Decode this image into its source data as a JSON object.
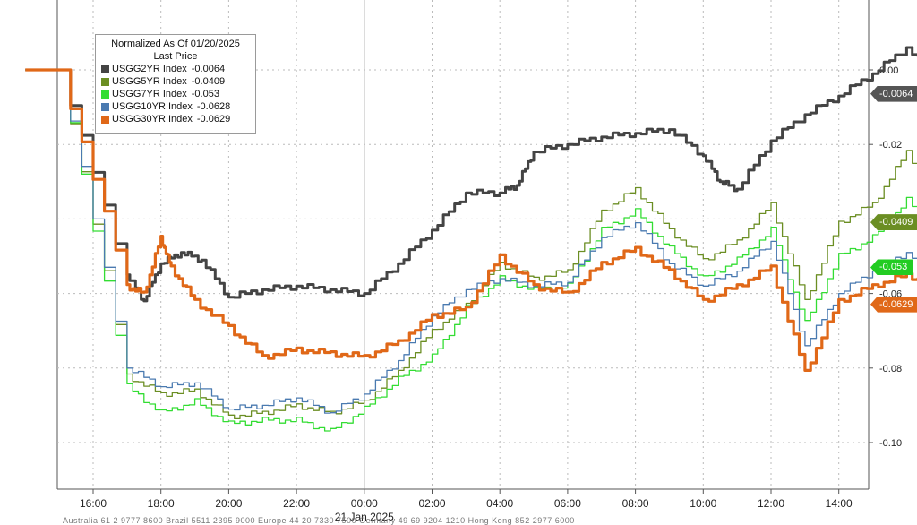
{
  "chart_data": {
    "type": "line",
    "legend": {
      "title_line1": "Normalized As Of 01/20/2025",
      "title_line2": "Last Price",
      "position": "top-left"
    },
    "x_ticks": [
      "16:00",
      "18:00",
      "20:00",
      "22:00",
      "00:00",
      "02:00",
      "04:00",
      "06:00",
      "08:00",
      "10:00",
      "12:00",
      "14:00"
    ],
    "x_date_label": "21 Jan 2025",
    "y_ticks": [
      "0.00",
      "-0.02",
      "-0.04",
      "-0.06",
      "-0.08",
      "-0.10"
    ],
    "ylim": [
      -0.1125,
      0.014
    ],
    "grid": true,
    "series": [
      {
        "name": "USGG2YR Index",
        "last": "-0.0064",
        "last_value": -0.0064,
        "color": "#444444",
        "points": [
          [
            0,
            0
          ],
          [
            1,
            0
          ],
          [
            3,
            -0.055
          ],
          [
            3.5,
            -0.062
          ],
          [
            4,
            -0.052
          ],
          [
            4.6,
            -0.049
          ],
          [
            5.2,
            -0.051
          ],
          [
            6,
            -0.061
          ],
          [
            7,
            -0.059
          ],
          [
            8,
            -0.058
          ],
          [
            9,
            -0.059
          ],
          [
            10,
            -0.06
          ],
          [
            11,
            -0.052
          ],
          [
            12,
            -0.043
          ],
          [
            13,
            -0.033
          ],
          [
            14,
            -0.033
          ],
          [
            14.5,
            -0.031
          ],
          [
            15,
            -0.022
          ],
          [
            16,
            -0.02
          ],
          [
            17,
            -0.018
          ],
          [
            18,
            -0.017
          ],
          [
            19,
            -0.016
          ],
          [
            20,
            -0.023
          ],
          [
            20.5,
            -0.03
          ],
          [
            21,
            -0.032
          ],
          [
            22,
            -0.019
          ],
          [
            23,
            -0.012
          ],
          [
            24,
            -0.007
          ],
          [
            25,
            -0.001
          ],
          [
            26,
            0.006
          ],
          [
            27,
            -0.003
          ],
          [
            28,
            -0.005
          ],
          [
            28.5,
            -0.006
          ],
          [
            29,
            -0.0064
          ]
        ]
      },
      {
        "name": "USGG5YR Index",
        "last": "-0.0409",
        "last_value": -0.0409,
        "color": "#6b8e23",
        "points": [
          [
            0,
            0
          ],
          [
            1,
            0
          ],
          [
            3,
            -0.082
          ],
          [
            4,
            -0.087
          ],
          [
            5,
            -0.086
          ],
          [
            6,
            -0.093
          ],
          [
            7,
            -0.092
          ],
          [
            8,
            -0.09
          ],
          [
            9,
            -0.092
          ],
          [
            10,
            -0.089
          ],
          [
            11,
            -0.081
          ],
          [
            12,
            -0.07
          ],
          [
            13,
            -0.063
          ],
          [
            14,
            -0.052
          ],
          [
            15,
            -0.056
          ],
          [
            16,
            -0.054
          ],
          [
            17,
            -0.038
          ],
          [
            18,
            -0.032
          ],
          [
            19,
            -0.043
          ],
          [
            20,
            -0.051
          ],
          [
            21,
            -0.046
          ],
          [
            22,
            -0.036
          ],
          [
            23,
            -0.062
          ],
          [
            24,
            -0.041
          ],
          [
            25,
            -0.036
          ],
          [
            26,
            -0.022
          ],
          [
            27,
            -0.036
          ],
          [
            28,
            -0.033
          ],
          [
            29,
            -0.0409
          ]
        ]
      },
      {
        "name": "USGG7YR Index",
        "last": "-0.053",
        "last_value": -0.053,
        "color": "#33dd33",
        "points": [
          [
            0,
            0
          ],
          [
            1,
            0
          ],
          [
            3,
            -0.085
          ],
          [
            4,
            -0.092
          ],
          [
            5,
            -0.089
          ],
          [
            6,
            -0.095
          ],
          [
            7,
            -0.094
          ],
          [
            8,
            -0.094
          ],
          [
            9,
            -0.097
          ],
          [
            10,
            -0.091
          ],
          [
            11,
            -0.083
          ],
          [
            12,
            -0.077
          ],
          [
            13,
            -0.064
          ],
          [
            14,
            -0.056
          ],
          [
            15,
            -0.059
          ],
          [
            16,
            -0.058
          ],
          [
            17,
            -0.043
          ],
          [
            18,
            -0.038
          ],
          [
            19,
            -0.048
          ],
          [
            20,
            -0.056
          ],
          [
            21,
            -0.051
          ],
          [
            22,
            -0.043
          ],
          [
            23,
            -0.068
          ],
          [
            24,
            -0.05
          ],
          [
            25,
            -0.045
          ],
          [
            26,
            -0.035
          ],
          [
            27,
            -0.045
          ],
          [
            28,
            -0.044
          ],
          [
            29,
            -0.053
          ]
        ]
      },
      {
        "name": "USGG10YR Index",
        "last": "-0.0628",
        "last_value": -0.0628,
        "color": "#4a7ab0",
        "points": [
          [
            0,
            0
          ],
          [
            1,
            0
          ],
          [
            3,
            -0.08
          ],
          [
            4,
            -0.085
          ],
          [
            5,
            -0.084
          ],
          [
            6,
            -0.091
          ],
          [
            7,
            -0.09
          ],
          [
            8,
            -0.088
          ],
          [
            9,
            -0.092
          ],
          [
            10,
            -0.087
          ],
          [
            11,
            -0.078
          ],
          [
            12,
            -0.066
          ],
          [
            13,
            -0.059
          ],
          [
            14,
            -0.056
          ],
          [
            15,
            -0.058
          ],
          [
            16,
            -0.057
          ],
          [
            17,
            -0.045
          ],
          [
            18,
            -0.041
          ],
          [
            19,
            -0.052
          ],
          [
            20,
            -0.058
          ],
          [
            21,
            -0.054
          ],
          [
            22,
            -0.046
          ],
          [
            23,
            -0.074
          ],
          [
            24,
            -0.06
          ],
          [
            25,
            -0.054
          ],
          [
            26,
            -0.049
          ],
          [
            27,
            -0.056
          ],
          [
            28,
            -0.057
          ],
          [
            29,
            -0.0628
          ]
        ]
      },
      {
        "name": "USGG30YR Index",
        "last": "-0.0629",
        "last_value": -0.0629,
        "color": "#e06818",
        "points": [
          [
            0,
            0
          ],
          [
            1,
            0
          ],
          [
            3,
            -0.058
          ],
          [
            3.5,
            -0.06
          ],
          [
            4,
            -0.045
          ],
          [
            4.3,
            -0.053
          ],
          [
            5,
            -0.062
          ],
          [
            6,
            -0.069
          ],
          [
            7,
            -0.077
          ],
          [
            8,
            -0.075
          ],
          [
            9,
            -0.076
          ],
          [
            10,
            -0.077
          ],
          [
            11,
            -0.073
          ],
          [
            12,
            -0.066
          ],
          [
            13,
            -0.064
          ],
          [
            14,
            -0.05
          ],
          [
            15,
            -0.058
          ],
          [
            16,
            -0.06
          ],
          [
            17,
            -0.052
          ],
          [
            18,
            -0.048
          ],
          [
            19,
            -0.054
          ],
          [
            20,
            -0.062
          ],
          [
            21,
            -0.058
          ],
          [
            22,
            -0.053
          ],
          [
            23,
            -0.081
          ],
          [
            24,
            -0.062
          ],
          [
            25,
            -0.058
          ],
          [
            26,
            -0.055
          ],
          [
            27,
            -0.058
          ],
          [
            28,
            -0.058
          ],
          [
            29,
            -0.0629
          ]
        ]
      }
    ]
  },
  "footer_garble": "Australia 61 2 9777 8600  Brazil 5511 2395 9000  Europe 44 20 7330 7500  Germany 49 69 9204 1210  Hong Kong 852 2977 6000"
}
